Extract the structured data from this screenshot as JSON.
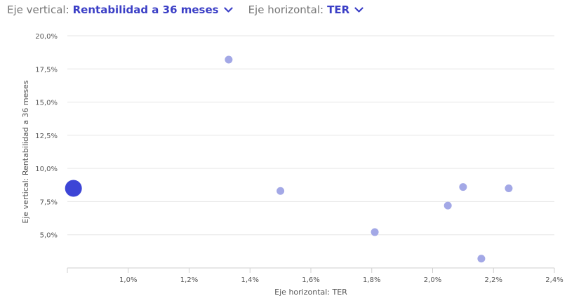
{
  "controls": {
    "vertical": {
      "label": "Eje vertical:",
      "value": "Rentabilidad a 36 meses",
      "chevron_icon": "chevron-down-icon"
    },
    "horizontal": {
      "label": "Eje horizontal:",
      "value": "TER",
      "chevron_icon": "chevron-down-icon"
    }
  },
  "colors": {
    "accent": "#3b3fc6",
    "point": "#a3a8e6",
    "highlight": "#3d45d6",
    "grid": "#e6e6e6"
  },
  "chart_data": {
    "type": "scatter",
    "xlabel": "Eje horizontal: TER",
    "ylabel": "Eje vertical: Rentabilidad a 36 meses",
    "xlim": [
      0.8,
      2.4
    ],
    "ylim": [
      2.5,
      20.0
    ],
    "grid": true,
    "xticks": [
      1.0,
      1.2,
      1.4,
      1.6,
      1.8,
      2.0,
      2.2,
      2.4
    ],
    "xtick_labels": [
      "1,0%",
      "1,2%",
      "1,4%",
      "1,6%",
      "1,8%",
      "2,0%",
      "2,2%",
      "2,4%"
    ],
    "yticks": [
      5.0,
      7.5,
      10.0,
      12.5,
      15.0,
      17.5,
      20.0
    ],
    "ytick_labels": [
      "5,0%",
      "7,5%",
      "10,0%",
      "12,5%",
      "15,0%",
      "17,5%",
      "20,0%"
    ],
    "points": [
      {
        "x": 0.82,
        "y": 8.5,
        "highlight": true
      },
      {
        "x": 1.33,
        "y": 18.2
      },
      {
        "x": 1.5,
        "y": 8.3
      },
      {
        "x": 1.81,
        "y": 5.2
      },
      {
        "x": 2.05,
        "y": 7.2
      },
      {
        "x": 2.1,
        "y": 8.6
      },
      {
        "x": 2.16,
        "y": 3.2
      },
      {
        "x": 2.25,
        "y": 8.5
      }
    ]
  }
}
